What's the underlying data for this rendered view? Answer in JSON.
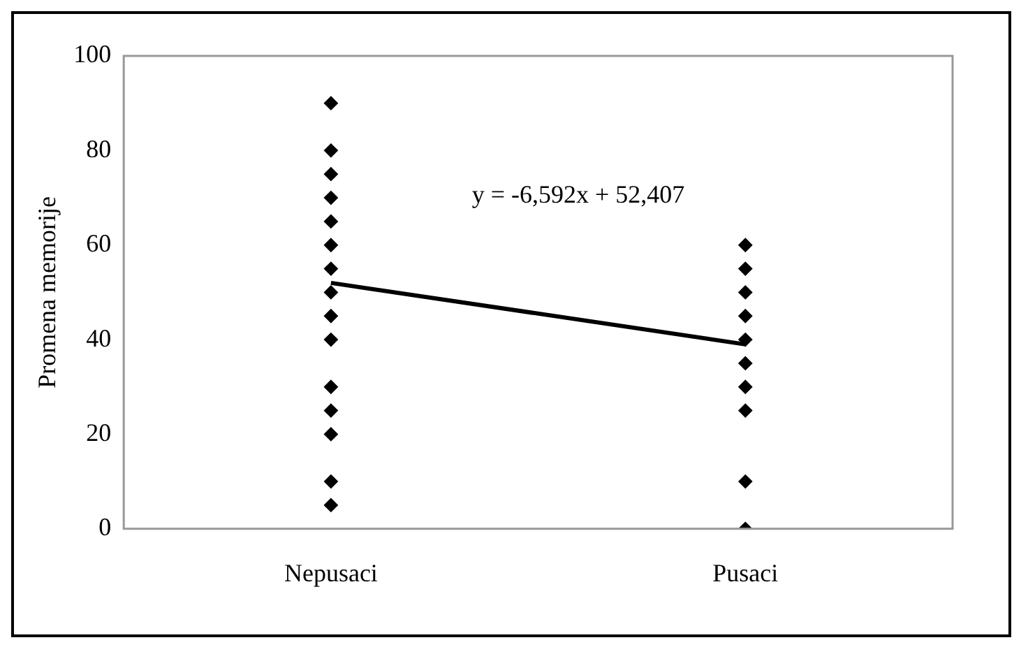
{
  "chart_data": {
    "type": "scatter",
    "ylabel": "Promena memorije",
    "categories": [
      "Nepusaci",
      "Pusaci"
    ],
    "ylim": [
      0,
      100
    ],
    "yticks": [
      0,
      20,
      40,
      60,
      80,
      100
    ],
    "grid": false,
    "legend": false,
    "series": [
      {
        "type": "scatter",
        "color": "#000000",
        "marker": "diamond",
        "x": [
          "Nepusaci",
          "Nepusaci",
          "Nepusaci",
          "Nepusaci",
          "Nepusaci",
          "Nepusaci",
          "Nepusaci",
          "Nepusaci",
          "Nepusaci",
          "Nepusaci",
          "Nepusaci",
          "Nepusaci",
          "Nepusaci",
          "Nepusaci",
          "Nepusaci",
          "Pusaci",
          "Pusaci",
          "Pusaci",
          "Pusaci",
          "Pusaci",
          "Pusaci",
          "Pusaci",
          "Pusaci",
          "Pusaci",
          "Pusaci"
        ],
        "values": [
          90,
          80,
          75,
          70,
          65,
          60,
          55,
          50,
          45,
          40,
          30,
          25,
          20,
          10,
          5,
          60,
          55,
          50,
          45,
          40,
          35,
          30,
          25,
          10,
          0
        ]
      },
      {
        "type": "line",
        "color": "#000000",
        "marker": "none",
        "x": [
          "Nepusaci",
          "Pusaci"
        ],
        "values": [
          52,
          39
        ]
      }
    ],
    "annotations": [
      "y = -6,592x + 52,407"
    ]
  }
}
